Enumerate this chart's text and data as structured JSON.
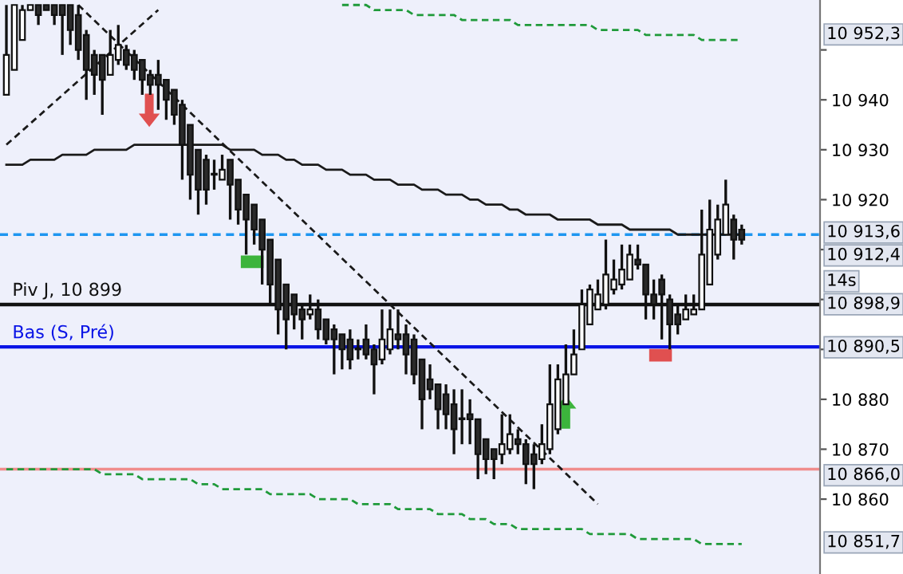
{
  "chart_data": {
    "type": "candlestick",
    "categories": [
      null,
      null,
      null,
      null,
      null,
      null,
      null,
      null,
      null,
      null,
      null,
      null,
      null,
      null,
      null,
      null,
      null,
      null,
      null,
      null,
      null,
      null,
      null,
      null,
      null,
      null,
      null,
      null,
      null,
      null,
      null,
      null,
      null,
      null,
      null,
      null,
      null,
      null,
      null,
      null,
      null,
      null,
      null,
      null,
      null,
      null,
      null,
      null,
      null,
      null,
      null,
      null,
      null,
      null,
      null,
      null,
      null,
      null,
      null,
      null,
      null,
      null,
      null,
      null,
      null,
      null,
      null,
      null,
      null,
      null,
      null,
      null,
      null,
      null,
      null,
      null,
      null,
      null,
      null,
      null,
      null,
      null,
      null,
      null,
      null,
      null,
      null,
      null,
      null,
      null,
      null,
      null,
      null,
      null,
      null,
      null,
      null,
      null,
      null,
      null,
      null,
      null
    ],
    "ohlc": [
      [
        10941,
        10959,
        10941,
        10949
      ],
      [
        10946,
        10959,
        10946,
        10959
      ],
      [
        10952,
        10959,
        10952,
        10958
      ],
      [
        10958,
        10959,
        10958,
        10959
      ],
      [
        10959,
        10959,
        10955,
        10957
      ],
      [
        10959,
        10959,
        10958,
        10958
      ],
      [
        10959,
        10959,
        10955,
        10957
      ],
      [
        10959,
        10959,
        10949,
        10957
      ],
      [
        10959,
        10959,
        10951,
        10954
      ],
      [
        10957,
        10959,
        10948,
        10950
      ],
      [
        10953,
        10954,
        10940,
        10946
      ],
      [
        10949,
        10950,
        10941,
        10945
      ],
      [
        10949,
        10949,
        10937,
        10944
      ],
      [
        10945,
        10954,
        10945,
        10949
      ],
      [
        10948,
        10955,
        10947,
        10951
      ],
      [
        10950,
        10951,
        10946,
        10947
      ],
      [
        10949,
        10950,
        10944,
        10946
      ],
      [
        10948,
        10948,
        10941,
        10944
      ],
      [
        10945,
        10946,
        10941,
        10943
      ],
      [
        10945,
        10948,
        10938,
        10943
      ],
      [
        10944,
        10944,
        10936,
        10940
      ],
      [
        10942,
        10942,
        10935,
        10937
      ],
      [
        10939,
        10940,
        10924,
        10931
      ],
      [
        10935,
        10935,
        10920,
        10925
      ],
      [
        10930,
        10930,
        10917,
        10922
      ],
      [
        10928,
        10929,
        10919,
        10922
      ],
      [
        10925,
        10928,
        10922,
        10925
      ],
      [
        10924,
        10929,
        10924,
        10926
      ],
      [
        10928,
        10928,
        10916,
        10923
      ],
      [
        10924,
        10924,
        10915,
        10918
      ],
      [
        10921,
        10921,
        10909,
        10916
      ],
      [
        10919,
        10919,
        10911,
        10914
      ],
      [
        10916,
        10916,
        10903,
        10910
      ],
      [
        10912,
        10912,
        10899,
        10903
      ],
      [
        10908,
        10908,
        10893,
        10898
      ],
      [
        10903,
        10903,
        10890,
        10896
      ],
      [
        10901,
        10901,
        10894,
        10897
      ],
      [
        10898,
        10899,
        10892,
        10896
      ],
      [
        10897,
        10901,
        10896,
        10898
      ],
      [
        10898,
        10900,
        10892,
        10894
      ],
      [
        10896,
        10896,
        10891,
        10892
      ],
      [
        10894,
        10895,
        10885,
        10892
      ],
      [
        10893,
        10893,
        10886,
        10890
      ],
      [
        10892,
        10894,
        10886,
        10888
      ],
      [
        10890,
        10892,
        10888,
        10890
      ],
      [
        10892,
        10895,
        10888,
        10889
      ],
      [
        10890,
        10891,
        10881,
        10887
      ],
      [
        10888,
        10898,
        10887,
        10892
      ],
      [
        10890,
        10898,
        10889,
        10894
      ],
      [
        10893,
        10898,
        10890,
        10892
      ],
      [
        10893,
        10895,
        10885,
        10889
      ],
      [
        10892,
        10893,
        10883,
        10885
      ],
      [
        10888,
        10888,
        10874,
        10880
      ],
      [
        10884,
        10887,
        10880,
        10882
      ],
      [
        10883,
        10883,
        10874,
        10878
      ],
      [
        10881,
        10883,
        10874,
        10877
      ],
      [
        10879,
        10882,
        10869,
        10874
      ],
      [
        10876,
        10882,
        10871,
        10876
      ],
      [
        10877,
        10880,
        10871,
        10876
      ],
      [
        10876,
        10876,
        10864,
        10869
      ],
      [
        10872,
        10872,
        10865,
        10868
      ],
      [
        10870,
        10870,
        10864,
        10868
      ],
      [
        10869,
        10877,
        10867,
        10871
      ],
      [
        10870,
        10877,
        10869,
        10873
      ],
      [
        10872,
        10874,
        10869,
        10871
      ],
      [
        10871,
        10872,
        10863,
        10867
      ],
      [
        10869,
        10871,
        10862,
        10867
      ],
      [
        10868,
        10875,
        10867,
        10871
      ],
      [
        10870,
        10887,
        10869,
        10879
      ],
      [
        10874,
        10887,
        10873,
        10884
      ],
      [
        10879,
        10891,
        10879,
        10885
      ],
      [
        10885,
        10894,
        10885,
        10889
      ],
      [
        10890,
        10902,
        10890,
        10899
      ],
      [
        10895,
        10903,
        10895,
        10902
      ],
      [
        10898,
        10904,
        10898,
        10901
      ],
      [
        10899,
        10912,
        10898,
        10905
      ],
      [
        10902,
        10908,
        10901,
        10904
      ],
      [
        10903,
        10911,
        10902,
        10906
      ],
      [
        10904,
        10911,
        10904,
        10909
      ],
      [
        10908,
        10911,
        10906,
        10907
      ],
      [
        10907,
        10907,
        10896,
        10901
      ],
      [
        10901,
        10904,
        10896,
        10899
      ],
      [
        10904,
        10905,
        10892,
        10901
      ],
      [
        10900,
        10901,
        10890,
        10895
      ],
      [
        10897,
        10899,
        10893,
        10895
      ],
      [
        10896,
        10901,
        10896,
        10898
      ],
      [
        10897,
        10901,
        10897,
        10898
      ],
      [
        10898,
        10918,
        10898,
        10909
      ],
      [
        10903,
        10920,
        10903,
        10914
      ],
      [
        10909,
        10919,
        10908,
        10916
      ],
      [
        10913,
        10924,
        10913,
        10919
      ],
      [
        10916,
        10917,
        10908,
        10912
      ],
      [
        10914,
        10915,
        10911,
        10912
      ],
      null,
      null,
      null,
      null,
      null,
      null,
      null,
      null,
      null
    ],
    "series": [
      {
        "type": "line",
        "color": "#1a1a1a",
        "line_style": "solid",
        "values": [
          10927,
          10927,
          10927,
          10928,
          10928,
          10928,
          10928,
          10929,
          10929,
          10929,
          10929,
          10930,
          10930,
          10930,
          10930,
          10930,
          10931,
          10931,
          10931,
          10931,
          10931,
          10931,
          10931,
          10931,
          10931,
          10931,
          10931,
          10931,
          10930,
          10930,
          10930,
          10930,
          10929,
          10929,
          10929,
          10928,
          10928,
          10927,
          10927,
          10927,
          10926,
          10926,
          10926,
          10925,
          10925,
          10925,
          10924,
          10924,
          10924,
          10923,
          10923,
          10923,
          10922,
          10922,
          10922,
          10921,
          10921,
          10921,
          10920,
          10920,
          10919,
          10919,
          10919,
          10918,
          10918,
          10917,
          10917,
          10917,
          10917,
          10916,
          10916,
          10916,
          10916,
          10916,
          10915,
          10915,
          10915,
          10915,
          10914,
          10914,
          10914,
          10914,
          10914,
          10914,
          10913,
          10913,
          10913,
          10913,
          10913,
          10913,
          10913,
          10913,
          10913,
          null,
          null,
          null,
          null,
          null,
          null,
          null,
          null,
          null
        ]
      },
      {
        "type": "line",
        "color": "#1f9a3a",
        "line_style": "dashed",
        "values": [
          null,
          null,
          null,
          null,
          null,
          null,
          null,
          null,
          null,
          null,
          null,
          null,
          null,
          null,
          null,
          null,
          null,
          null,
          null,
          null,
          null,
          null,
          null,
          null,
          null,
          null,
          null,
          null,
          null,
          null,
          null,
          null,
          null,
          null,
          null,
          null,
          null,
          null,
          null,
          null,
          null,
          null,
          10959,
          10959,
          10959,
          10959,
          10958,
          10958,
          10958,
          10958,
          10958,
          10957,
          10957,
          10957,
          10957,
          10957,
          10957,
          10956,
          10956,
          10956,
          10956,
          10956,
          10956,
          10956,
          10955,
          10955,
          10955,
          10955,
          10955,
          10955,
          10955,
          10955,
          10955,
          10955,
          10954,
          10954,
          10954,
          10954,
          10954,
          10954,
          10953,
          10953,
          10953,
          10953,
          10953,
          10953,
          10953,
          10952,
          10952,
          10952,
          10952,
          10952,
          10952,
          null,
          null,
          null,
          null,
          null,
          null,
          null,
          null,
          null
        ]
      },
      {
        "type": "line",
        "color": "#1f9a3a",
        "line_style": "dashed",
        "values": [
          10866,
          10866,
          10866,
          10866,
          10866,
          10866,
          10866,
          10866,
          10866,
          10866,
          10866,
          10866,
          10865,
          10865,
          10865,
          10865,
          10865,
          10864,
          10864,
          10864,
          10864,
          10864,
          10864,
          10864,
          10863,
          10863,
          10863,
          10862,
          10862,
          10862,
          10862,
          10862,
          10862,
          10861,
          10861,
          10861,
          10861,
          10861,
          10861,
          10860,
          10860,
          10860,
          10860,
          10860,
          10859,
          10859,
          10859,
          10859,
          10859,
          10858,
          10858,
          10858,
          10858,
          10858,
          10857,
          10857,
          10857,
          10857,
          10856,
          10856,
          10856,
          10855,
          10855,
          10855,
          10854,
          10854,
          10854,
          10854,
          10854,
          10854,
          10854,
          10854,
          10854,
          10853,
          10853,
          10853,
          10853,
          10853,
          10853,
          10852,
          10852,
          10852,
          10852,
          10852,
          10852,
          10852,
          10852,
          10851,
          10851,
          10851,
          10851,
          10851,
          10851,
          null,
          null,
          null,
          null,
          null,
          null,
          null,
          null,
          null
        ]
      },
      {
        "type": "line",
        "color": "#1a1a1a",
        "line_style": "dashed",
        "values": [
          10931,
          null,
          null,
          null,
          null,
          null,
          null,
          null,
          null,
          null,
          null,
          null,
          null,
          null,
          null,
          null,
          null,
          null,
          null,
          10958,
          null,
          null,
          null,
          null,
          null,
          null,
          null,
          null,
          null,
          null,
          null,
          null,
          null,
          null,
          null,
          null,
          null,
          null,
          null,
          null,
          null,
          null,
          null,
          null,
          null,
          null,
          null,
          null,
          null,
          null,
          null,
          null,
          null,
          null,
          null,
          null,
          null,
          null,
          null,
          null,
          null,
          null,
          null,
          null,
          null,
          null,
          null,
          null,
          null,
          null,
          null,
          null,
          null,
          null,
          null,
          null,
          null,
          null,
          null,
          null,
          null,
          null,
          null,
          null,
          null,
          null,
          null,
          null,
          null,
          null,
          null,
          null,
          null,
          null,
          null,
          null,
          null,
          null,
          null,
          null,
          null,
          null
        ]
      },
      {
        "type": "line",
        "color": "#1a1a1a",
        "line_style": "dashed",
        "values": [
          null,
          null,
          null,
          null,
          null,
          null,
          null,
          null,
          null,
          10959,
          null,
          null,
          null,
          null,
          null,
          null,
          null,
          null,
          null,
          null,
          null,
          null,
          null,
          null,
          null,
          null,
          null,
          null,
          null,
          null,
          null,
          null,
          null,
          null,
          null,
          null,
          null,
          null,
          null,
          null,
          null,
          null,
          null,
          null,
          null,
          null,
          null,
          null,
          null,
          null,
          null,
          null,
          null,
          null,
          null,
          null,
          null,
          null,
          null,
          null,
          null,
          null,
          null,
          null,
          null,
          null,
          null,
          null,
          null,
          null,
          null,
          null,
          null,
          null,
          10859,
          null,
          null,
          null,
          null,
          null,
          null,
          null,
          null,
          null,
          null,
          null,
          null,
          null,
          null,
          null,
          null,
          null,
          null,
          null,
          null,
          null,
          null,
          null,
          null,
          null,
          null,
          null
        ]
      }
    ],
    "ref_lines": [
      {
        "axis": "y",
        "value": 10913,
        "color": "#1e96f0",
        "line_style": "dashed"
      },
      {
        "axis": "y",
        "value": 10899,
        "label": "Piv J, 10 899",
        "color": "#111111",
        "line_style": "solid"
      },
      {
        "axis": "y",
        "value": 10890.5,
        "label": "Bas (S, Pré)",
        "color": "#0a14e6",
        "line_style": "solid"
      },
      {
        "axis": "y",
        "value": 10866,
        "color": "#f08c8c",
        "line_style": "solid"
      }
    ],
    "annotations": [
      "10 952,3",
      "10 913,6",
      "10 912,4",
      "14s",
      "10 898,9",
      "10 890,5",
      "10 866,0",
      "10 851,7"
    ],
    "ylim": [
      10845,
      10960
    ],
    "yticks": [
      10860,
      10870,
      10880,
      {
        "value": 10890,
        "label": null
      },
      {
        "value": 10900,
        "label": null
      },
      {
        "value": 10910,
        "label": null
      },
      10920,
      10930,
      10940,
      {
        "value": 10950,
        "label": null
      }
    ],
    "tick_labels": "y",
    "legend": false
  }
}
